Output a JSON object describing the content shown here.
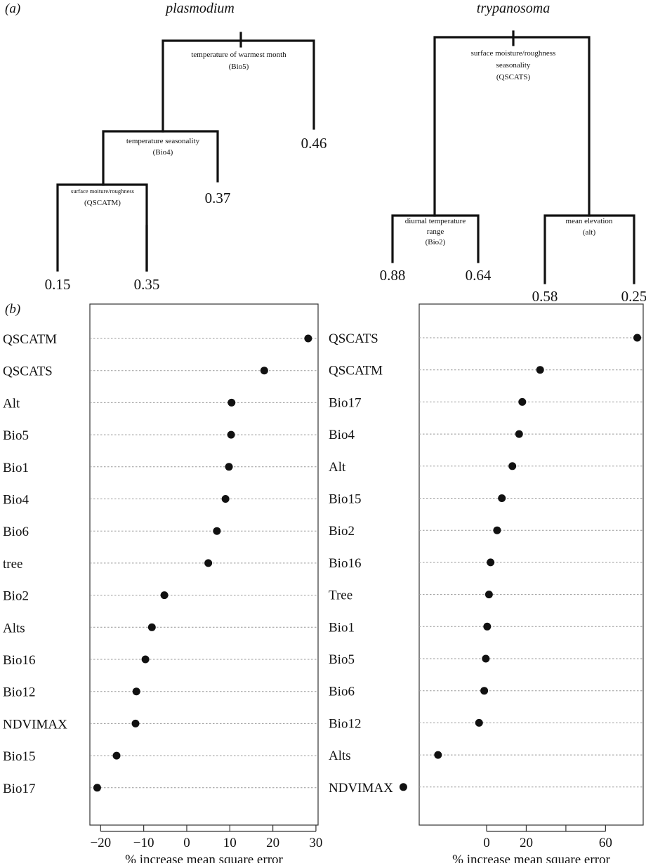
{
  "panel_a_label": "(a)",
  "panel_b_label": "(b)",
  "chart_data": [
    {
      "type": "tree",
      "title": "plasmodium",
      "splits": {
        "root": "temperature of warmest month",
        "root_code": "(Bio5)",
        "second": "temperature seasonality",
        "second_code": "(Bio4)",
        "third": "surface moiture/roughness",
        "third_code": "(QSCATM)"
      },
      "leaves": [
        "0.15",
        "0.35",
        "0.37",
        "0.46"
      ]
    },
    {
      "type": "tree",
      "title": "trypanosoma",
      "splits": {
        "root_line1": "surface moisture/roughness",
        "root_line2": "seasonality",
        "root_code": "(QSCATS)",
        "left_line1": "diurnal temperature",
        "left_line2": "range",
        "left_code": "(Bio2)",
        "right": "mean elevation",
        "right_code": "(alt)"
      },
      "leaves": [
        "0.88",
        "0.64",
        "0.58",
        "0.25"
      ]
    },
    {
      "type": "scatter",
      "categories": [
        "QSCATM",
        "QSCATS",
        "Alt",
        "Bio5",
        "Bio1",
        "Bio4",
        "Bio6",
        "tree",
        "Bio2",
        "Alts",
        "Bio16",
        "Bio12",
        "NDVIMAX",
        "Bio15",
        "Bio17"
      ],
      "values": [
        28.2,
        18,
        10.4,
        10.3,
        9.8,
        9,
        7,
        5,
        -5.2,
        -8.1,
        -9.6,
        -11.7,
        -11.9,
        -16.3,
        -20.8
      ],
      "xlabel": "% increase mean square error",
      "xticks": [
        -20,
        -10,
        0,
        10,
        20,
        30
      ],
      "xlim": [
        -22.5,
        30.5
      ],
      "grid": "dotted horizontal"
    },
    {
      "type": "scatter",
      "categories": [
        "QSCATS",
        "QSCATM",
        "Bio17",
        "Bio4",
        "Alt",
        "Bio15",
        "Bio2",
        "Bio16",
        "Tree",
        "Bio1",
        "Bio5",
        "Bio6",
        "Bio12",
        "Alts",
        "NDVIMAX"
      ],
      "values": [
        76,
        27,
        18,
        16.4,
        13,
        7.7,
        5.3,
        2,
        1.2,
        0.3,
        -0.4,
        -1.2,
        -3.8,
        -24.5,
        -42
      ],
      "xlabel": "% increase mean square error",
      "xticks": [
        0,
        20,
        40,
        60
      ],
      "xtick_labels": [
        "0",
        "20",
        "",
        "60"
      ],
      "xlim": [
        -34,
        79
      ],
      "grid": "dotted horizontal"
    }
  ]
}
